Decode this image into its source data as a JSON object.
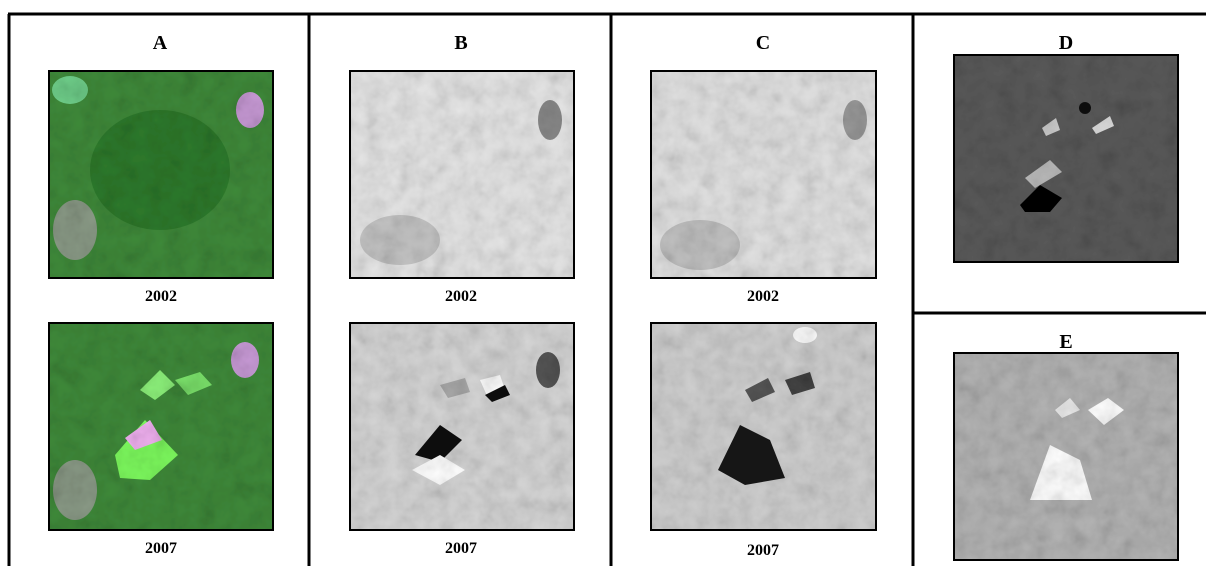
{
  "panels": [
    {
      "label": "A",
      "captions": [
        "2002",
        "2007"
      ]
    },
    {
      "label": "B",
      "captions": [
        "2002",
        "2007"
      ]
    },
    {
      "label": "C",
      "captions": [
        "2002",
        "2007"
      ]
    },
    {
      "label": "D"
    },
    {
      "label": "E"
    }
  ]
}
